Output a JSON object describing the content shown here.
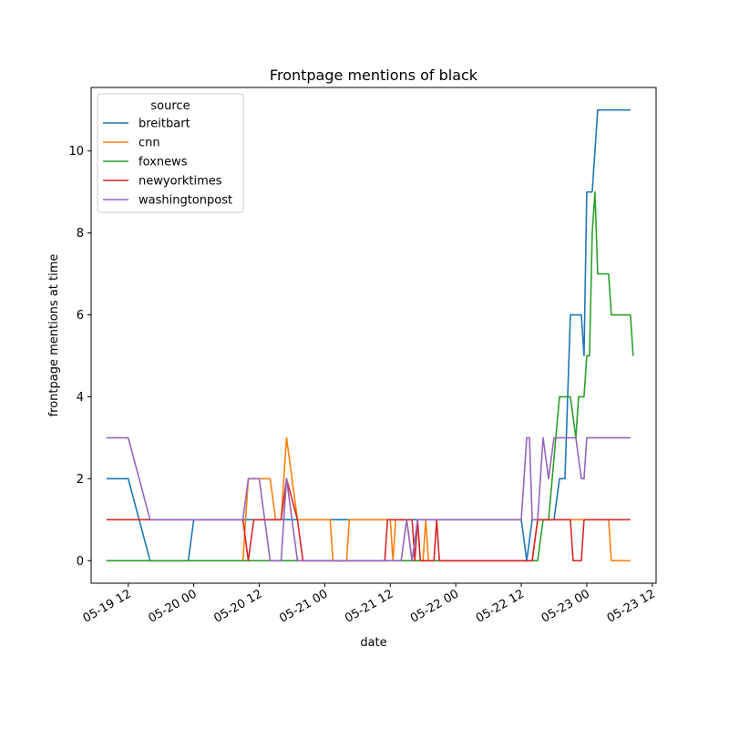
{
  "chart_data": {
    "type": "line",
    "title": "Frontpage mentions of black",
    "xlabel": "date",
    "ylabel": "frontpage mentions at time",
    "x_ticks": [
      "2020-05-19 12:00",
      "2020-05-20 00:00",
      "2020-05-20 12:00",
      "2020-05-21 00:00",
      "2020-05-21 12:00",
      "2020-05-22 00:00",
      "2020-05-22 12:00",
      "2020-05-23 00:00",
      "2020-05-23 12:00"
    ],
    "x_tick_labels": [
      "05-19 12",
      "05-20 00",
      "05-20 12",
      "05-21 00",
      "05-21 12",
      "05-22 00",
      "05-22 12",
      "05-23 00",
      "05-23 12"
    ],
    "xlim": [
      "2020-05-19 05:12",
      "2020-05-23 12:42"
    ],
    "ylim": [
      -0.55,
      11.55
    ],
    "y_ticks": [
      0,
      2,
      4,
      6,
      8,
      10
    ],
    "grid": false,
    "legend": {
      "title": "source",
      "position": "top-left"
    },
    "series": [
      {
        "name": "breitbart",
        "color": "#1f77b4",
        "points": [
          [
            "2020-05-19 08:00",
            2
          ],
          [
            "2020-05-19 12:00",
            2
          ],
          [
            "2020-05-19 16:00",
            0
          ],
          [
            "2020-05-19 23:00",
            0
          ],
          [
            "2020-05-20 00:00",
            1
          ],
          [
            "2020-05-22 12:00",
            1
          ],
          [
            "2020-05-22 13:00",
            0
          ],
          [
            "2020-05-22 14:00",
            1
          ],
          [
            "2020-05-22 18:00",
            1
          ],
          [
            "2020-05-22 19:00",
            2
          ],
          [
            "2020-05-22 20:00",
            2
          ],
          [
            "2020-05-22 21:00",
            6
          ],
          [
            "2020-05-22 23:00",
            6
          ],
          [
            "2020-05-22 23:30",
            5
          ],
          [
            "2020-05-23 00:00",
            9
          ],
          [
            "2020-05-23 01:00",
            9
          ],
          [
            "2020-05-23 02:00",
            11
          ],
          [
            "2020-05-23 08:00",
            11
          ]
        ]
      },
      {
        "name": "cnn",
        "color": "#ff7f0e",
        "points": [
          [
            "2020-05-19 08:00",
            0
          ],
          [
            "2020-05-20 09:00",
            0
          ],
          [
            "2020-05-20 10:00",
            2
          ],
          [
            "2020-05-20 14:00",
            2
          ],
          [
            "2020-05-20 15:00",
            1
          ],
          [
            "2020-05-20 16:00",
            1
          ],
          [
            "2020-05-20 17:00",
            3
          ],
          [
            "2020-05-20 19:00",
            1
          ],
          [
            "2020-05-21 01:00",
            1
          ],
          [
            "2020-05-21 01:30",
            0
          ],
          [
            "2020-05-21 04:00",
            0
          ],
          [
            "2020-05-21 04:30",
            1
          ],
          [
            "2020-05-21 12:00",
            1
          ],
          [
            "2020-05-21 12:30",
            0
          ],
          [
            "2020-05-21 13:00",
            1
          ],
          [
            "2020-05-21 15:00",
            1
          ],
          [
            "2020-05-21 16:00",
            0
          ],
          [
            "2020-05-21 18:00",
            0
          ],
          [
            "2020-05-21 18:30",
            1
          ],
          [
            "2020-05-21 19:00",
            0
          ],
          [
            "2020-05-22 12:00",
            0
          ],
          [
            "2020-05-22 14:00",
            0
          ],
          [
            "2020-05-22 15:00",
            1
          ],
          [
            "2020-05-23 04:00",
            1
          ],
          [
            "2020-05-23 04:30",
            0
          ],
          [
            "2020-05-23 08:00",
            0
          ]
        ]
      },
      {
        "name": "foxnews",
        "color": "#2ca02c",
        "points": [
          [
            "2020-05-19 08:00",
            0
          ],
          [
            "2020-05-22 15:00",
            0
          ],
          [
            "2020-05-22 16:00",
            1
          ],
          [
            "2020-05-22 17:00",
            1
          ],
          [
            "2020-05-22 19:00",
            4
          ],
          [
            "2020-05-22 21:00",
            4
          ],
          [
            "2020-05-22 22:00",
            3
          ],
          [
            "2020-05-22 22:30",
            4
          ],
          [
            "2020-05-22 23:30",
            4
          ],
          [
            "2020-05-23 00:00",
            5
          ],
          [
            "2020-05-23 00:30",
            5
          ],
          [
            "2020-05-23 01:00",
            8
          ],
          [
            "2020-05-23 01:30",
            9
          ],
          [
            "2020-05-23 02:00",
            7
          ],
          [
            "2020-05-23 04:00",
            7
          ],
          [
            "2020-05-23 04:30",
            6
          ],
          [
            "2020-05-23 08:00",
            6
          ],
          [
            "2020-05-23 08:30",
            5
          ]
        ]
      },
      {
        "name": "newyorktimes",
        "color": "#d62728",
        "points": [
          [
            "2020-05-19 08:00",
            1
          ],
          [
            "2020-05-20 09:00",
            1
          ],
          [
            "2020-05-20 10:00",
            0
          ],
          [
            "2020-05-20 11:00",
            1
          ],
          [
            "2020-05-20 16:00",
            1
          ],
          [
            "2020-05-20 17:00",
            2
          ],
          [
            "2020-05-20 19:00",
            1
          ],
          [
            "2020-05-20 20:00",
            0
          ],
          [
            "2020-05-21 11:00",
            0
          ],
          [
            "2020-05-21 11:30",
            1
          ],
          [
            "2020-05-21 16:00",
            1
          ],
          [
            "2020-05-21 16:30",
            0
          ],
          [
            "2020-05-21 17:00",
            1
          ],
          [
            "2020-05-21 17:30",
            0
          ],
          [
            "2020-05-21 20:00",
            0
          ],
          [
            "2020-05-21 20:30",
            1
          ],
          [
            "2020-05-21 21:00",
            0
          ],
          [
            "2020-05-22 14:00",
            0
          ],
          [
            "2020-05-22 15:00",
            1
          ],
          [
            "2020-05-22 21:00",
            1
          ],
          [
            "2020-05-22 21:30",
            0
          ],
          [
            "2020-05-22 23:00",
            0
          ],
          [
            "2020-05-22 23:30",
            1
          ],
          [
            "2020-05-23 08:00",
            1
          ]
        ]
      },
      {
        "name": "washingtonpost",
        "color": "#9467bd",
        "points": [
          [
            "2020-05-19 08:00",
            3
          ],
          [
            "2020-05-19 12:00",
            3
          ],
          [
            "2020-05-19 16:00",
            1
          ],
          [
            "2020-05-20 09:00",
            1
          ],
          [
            "2020-05-20 10:00",
            2
          ],
          [
            "2020-05-20 12:00",
            2
          ],
          [
            "2020-05-20 13:00",
            1
          ],
          [
            "2020-05-20 14:00",
            0
          ],
          [
            "2020-05-20 16:00",
            0
          ],
          [
            "2020-05-20 17:00",
            2
          ],
          [
            "2020-05-20 19:00",
            0
          ],
          [
            "2020-05-21 14:00",
            0
          ],
          [
            "2020-05-21 15:00",
            1
          ],
          [
            "2020-05-21 16:00",
            0
          ],
          [
            "2020-05-21 17:00",
            1
          ],
          [
            "2020-05-22 12:00",
            1
          ],
          [
            "2020-05-22 12:30",
            2
          ],
          [
            "2020-05-22 13:00",
            3
          ],
          [
            "2020-05-22 13:30",
            3
          ],
          [
            "2020-05-22 14:00",
            1
          ],
          [
            "2020-05-22 15:00",
            1
          ],
          [
            "2020-05-22 15:30",
            2
          ],
          [
            "2020-05-22 16:00",
            3
          ],
          [
            "2020-05-22 17:00",
            2
          ],
          [
            "2020-05-22 18:00",
            3
          ],
          [
            "2020-05-22 20:00",
            3
          ],
          [
            "2020-05-22 21:00",
            3
          ],
          [
            "2020-05-22 22:00",
            3
          ],
          [
            "2020-05-22 23:00",
            2
          ],
          [
            "2020-05-22 23:30",
            2
          ],
          [
            "2020-05-23 00:00",
            3
          ],
          [
            "2020-05-23 08:00",
            3
          ]
        ]
      }
    ]
  }
}
